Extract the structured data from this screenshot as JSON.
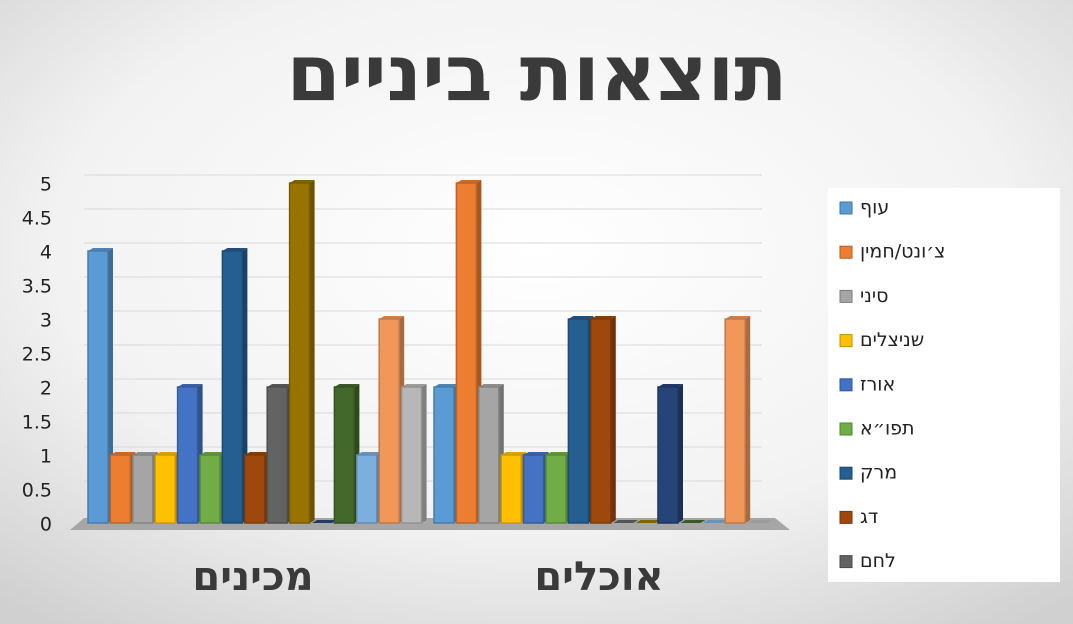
{
  "chart_data": {
    "type": "bar",
    "title": "תוצאות ביניים",
    "categories": [
      "מכינים",
      "אוכלים"
    ],
    "ylim": [
      0,
      5
    ],
    "yticks": [
      0,
      0.5,
      1,
      1.5,
      2,
      2.5,
      3,
      3.5,
      4,
      4.5,
      5
    ],
    "grid": true,
    "legend": "right",
    "series": [
      {
        "name": "עוף",
        "color": "#5b9bd5",
        "values": [
          4,
          2
        ]
      },
      {
        "name": "צ׳ונט/חמין",
        "color": "#ed7d31",
        "values": [
          1,
          5
        ]
      },
      {
        "name": "סיני",
        "color": "#a5a5a5",
        "values": [
          1,
          2
        ]
      },
      {
        "name": "שניצלים",
        "color": "#ffc000",
        "values": [
          1,
          1
        ]
      },
      {
        "name": "אורז",
        "color": "#4472c4",
        "values": [
          2,
          1
        ]
      },
      {
        "name": "תפו״א",
        "color": "#70ad47",
        "values": [
          1,
          1
        ]
      },
      {
        "name": "מרק",
        "color": "#255e91",
        "values": [
          4,
          3
        ]
      },
      {
        "name": "דג",
        "color": "#9e480e",
        "values": [
          1,
          3
        ]
      },
      {
        "name": "לחם",
        "color": "#636363",
        "values": [
          2,
          0
        ]
      },
      {
        "name": null,
        "color": "#997300",
        "values": [
          5,
          0
        ]
      },
      {
        "name": null,
        "color": "#264478",
        "values": [
          0,
          2
        ]
      },
      {
        "name": null,
        "color": "#43682b",
        "values": [
          2,
          0
        ]
      },
      {
        "name": null,
        "color": "#7cafdd",
        "values": [
          1,
          0
        ]
      },
      {
        "name": null,
        "color": "#f1975a",
        "values": [
          3,
          3
        ]
      },
      {
        "name": null,
        "color": "#b7b7b7",
        "values": [
          2,
          0
        ]
      }
    ]
  }
}
